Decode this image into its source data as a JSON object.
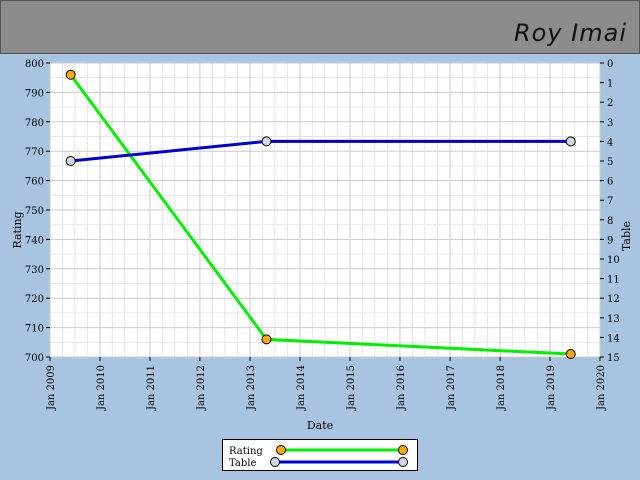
{
  "header": {
    "player_name": "Roy Imai"
  },
  "chart_data": {
    "type": "line",
    "xlabel": "Date",
    "ylabel": "Rating",
    "y2label": "Table",
    "x_ticks": [
      "Jan 2009",
      "Jan 2010",
      "Jan 2011",
      "Jan 2012",
      "Jan 2013",
      "Jan 2014",
      "Jan 2015",
      "Jan 2016",
      "Jan 2017",
      "Jan 2018",
      "Jan 2019",
      "Jan 2020"
    ],
    "xlim": [
      "2009-01-01",
      "2020-01-01"
    ],
    "ylim": [
      700,
      800
    ],
    "y_ticks": [
      700,
      710,
      720,
      730,
      740,
      750,
      760,
      770,
      780,
      790,
      800
    ],
    "y2lim": [
      0,
      15
    ],
    "y2_ticks": [
      0,
      1,
      2,
      3,
      4,
      5,
      6,
      7,
      8,
      9,
      10,
      11,
      12,
      13,
      14,
      15
    ],
    "y2_inverted": true,
    "grid": true,
    "legend": "bottom-center",
    "series": [
      {
        "name": "Rating",
        "axis": "left",
        "color": "#00ee00",
        "marker_color": "#ffaa00",
        "points": [
          {
            "x": "2009-06-01",
            "y": 796
          },
          {
            "x": "2013-05-01",
            "y": 706
          },
          {
            "x": "2019-06-01",
            "y": 701
          }
        ]
      },
      {
        "name": "Table",
        "axis": "right",
        "color": "#0000cc",
        "marker_color": "#d0d8e8",
        "points": [
          {
            "x": "2009-06-01",
            "y": 5
          },
          {
            "x": "2013-05-01",
            "y": 4
          },
          {
            "x": "2019-06-01",
            "y": 4
          }
        ]
      }
    ]
  }
}
